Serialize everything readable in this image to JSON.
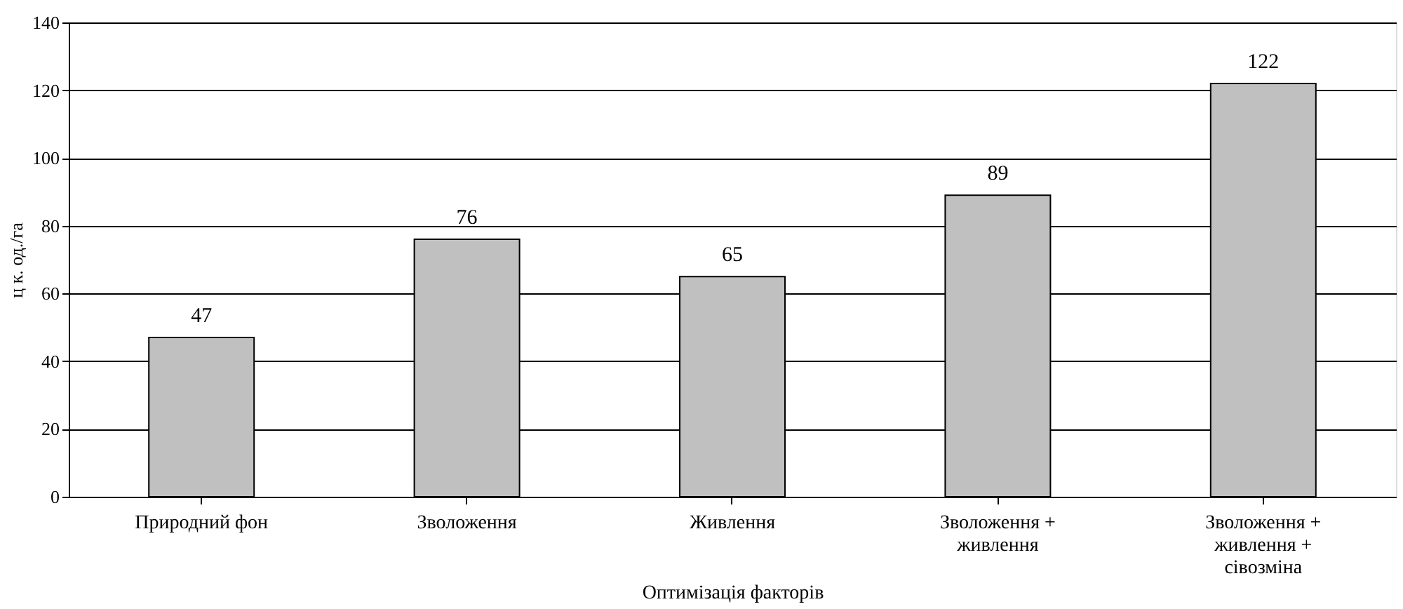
{
  "chart_data": {
    "type": "bar",
    "xlabel": "Оптимізація факторів",
    "ylabel": "ц к. од./га",
    "categories": [
      "Природний фон",
      "Зволоження",
      "Живлення",
      "Зволоження + живлення",
      "Зволоження + живлення + сівозміна"
    ],
    "values": [
      47,
      76,
      65,
      89,
      122
    ],
    "color": "#c0c0c0",
    "ylim": [
      0,
      140
    ],
    "yticks": [
      0,
      20,
      40,
      60,
      80,
      100,
      120,
      140
    ],
    "grid": "y",
    "data_labels": true
  }
}
